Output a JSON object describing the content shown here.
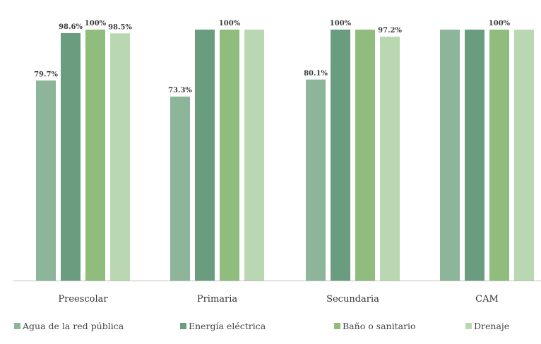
{
  "chart_data": {
    "type": "bar",
    "categories": [
      "Preescolar",
      "Primaria",
      "Secundaria",
      "CAM"
    ],
    "series": [
      {
        "name": "Agua de la red pública",
        "color": "#8db59a",
        "values": [
          79.7,
          73.3,
          80.1,
          100
        ]
      },
      {
        "name": "Energía eléctrica",
        "color": "#6a9c7f",
        "values": [
          98.6,
          100,
          100,
          100
        ]
      },
      {
        "name": "Baño o sanitario",
        "color": "#90bd7d",
        "values": [
          100,
          100,
          100,
          100
        ]
      },
      {
        "name": "Drenaje",
        "color": "#b9d7b0",
        "values": [
          98.5,
          100,
          97.2,
          100
        ]
      }
    ],
    "data_labels": [
      [
        "79.7%",
        "98.6%",
        "100%",
        "98.5%"
      ],
      [
        "73.3%",
        "",
        "100%",
        ""
      ],
      [
        "80.1%",
        "100%",
        "",
        "97.2%"
      ],
      [
        "",
        "",
        "100%",
        ""
      ]
    ],
    "ylim": [
      0,
      100
    ],
    "grid": false,
    "legend_position": "bottom",
    "title": "",
    "xlabel": "",
    "ylabel": ""
  }
}
